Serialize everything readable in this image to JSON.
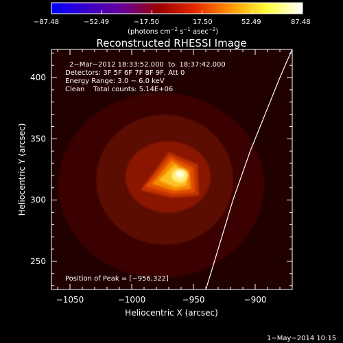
{
  "colorbar": {
    "ticks": [
      "−87.48",
      "−52.49",
      "−17.50",
      "17.50",
      "52.49",
      "87.48"
    ],
    "unit_main": "(photons cm",
    "unit_exp1": "−2",
    "unit_mid": " s",
    "unit_exp2": "−1",
    "unit_tail": " asec",
    "unit_exp3": "−2",
    "unit_close": ")",
    "range": [
      -87.48,
      87.48
    ],
    "colormap": [
      "#0000ff",
      "#3a00c8",
      "#6a0096",
      "#9a0000",
      "#e62800",
      "#ff9600",
      "#ffff3c",
      "#ffffff"
    ]
  },
  "chart_data": {
    "type": "heatmap",
    "title": "Reconstructed RHESSI Image",
    "xlabel": "Heliocentric X (arcsec)",
    "ylabel": "Heliocentric Y (arcsec)",
    "xlim": [
      -1065,
      -870
    ],
    "ylim": [
      227,
      423
    ],
    "xticks": [
      -1050,
      -1000,
      -950,
      -900
    ],
    "xtick_labels": [
      "−1050",
      "−1000",
      "−950",
      "−900"
    ],
    "yticks": [
      250,
      300,
      350,
      400
    ],
    "ytick_labels": [
      "250",
      "300",
      "350",
      "400"
    ],
    "peak": [
      -956,
      322
    ],
    "limb_curve": [
      [
        -940,
        227
      ],
      [
        -936,
        240
      ],
      [
        -930,
        260
      ],
      [
        -924,
        280
      ],
      [
        -918,
        300
      ],
      [
        -911,
        320
      ],
      [
        -904,
        340
      ],
      [
        -896,
        360
      ],
      [
        -888,
        380
      ],
      [
        -880,
        400
      ],
      [
        -874,
        414
      ],
      [
        -870,
        423
      ]
    ],
    "annotations": [
      "2−Mar−2012 18:33:52.000  to  18:37:42.000",
      "Detectors: 3F 5F 6F 7F 8F 9F, Att 0",
      "Energy Range: 3.0 − 6.0 keV",
      "Clean    Total counts: 5.14E+06"
    ],
    "peak_label": "Position of Peak = [−956,322]"
  },
  "footer": {
    "timestamp": "1−May−2014 10:15"
  }
}
